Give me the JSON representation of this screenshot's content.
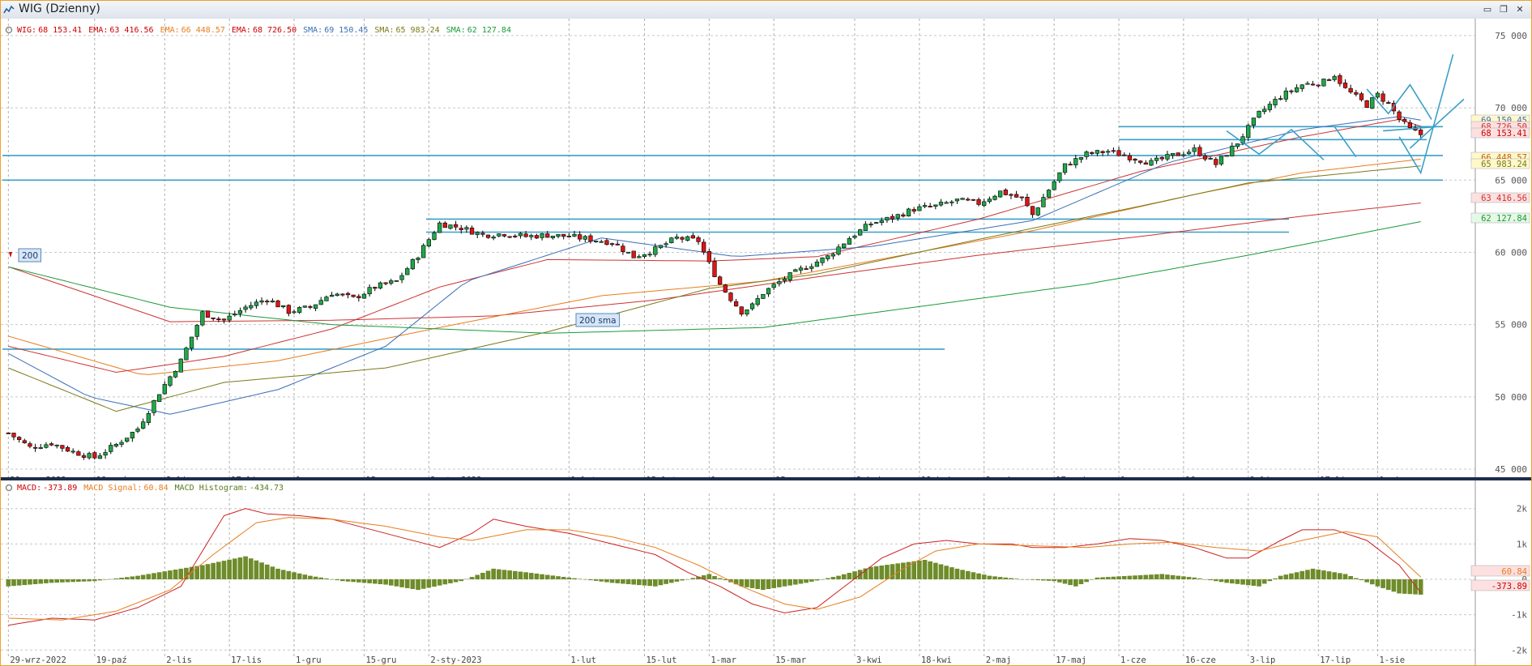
{
  "window": {
    "title": "WIG (Dzienny)",
    "buttons": [
      {
        "name": "minimize",
        "glyph": "▭"
      },
      {
        "name": "restore",
        "glyph": "❐"
      },
      {
        "name": "close",
        "glyph": "✕"
      }
    ]
  },
  "chart_data": [
    {
      "type": "candlestick",
      "panel": "price",
      "legend": [
        {
          "label": "WIG:",
          "value": "68 153.41",
          "color": "#cc0000"
        },
        {
          "label": "EMA:",
          "value": "63 416.56",
          "color": "#cc0000"
        },
        {
          "label": "EMA:",
          "value": "66 448.57",
          "color": "#e87d1e"
        },
        {
          "label": "EMA:",
          "value": "68 726.50",
          "color": "#cc0000"
        },
        {
          "label": "SMA:",
          "value": "69 150.45",
          "color": "#3a6fb7"
        },
        {
          "label": "SMA:",
          "value": "65 983.24",
          "color": "#7a7a1a"
        },
        {
          "label": "SMA:",
          "value": "62 127.84",
          "color": "#1a9a3a"
        }
      ],
      "x_labels": [
        "29-wrz-2022",
        "19-paź",
        "2-lis",
        "17-lis",
        "1-gru",
        "15-gru",
        "2-sty-2023",
        "1-lut",
        "15-lut",
        "1-mar",
        "15-mar",
        "3-kwi",
        "18-kwi",
        "2-maj",
        "17-maj",
        "1-cze",
        "16-cze",
        "3-lip",
        "17-lip",
        "1-sie"
      ],
      "y_ticks": [
        45000,
        50000,
        55000,
        60000,
        65000,
        70000,
        75000
      ],
      "y_tick_labels": [
        "45 000",
        "50 000",
        "55 000",
        "60 000",
        "65 000",
        "70 000",
        "75 000"
      ],
      "ylim": [
        45000,
        75500
      ],
      "price_path": [
        [
          0,
          47500
        ],
        [
          4,
          46500
        ],
        [
          8,
          46800
        ],
        [
          12,
          46200
        ],
        [
          16,
          45800
        ],
        [
          20,
          46700
        ],
        [
          24,
          47800
        ],
        [
          28,
          50300
        ],
        [
          32,
          52500
        ],
        [
          36,
          55800
        ],
        [
          40,
          55300
        ],
        [
          44,
          56200
        ],
        [
          48,
          56800
        ],
        [
          52,
          55900
        ],
        [
          56,
          56200
        ],
        [
          60,
          57200
        ],
        [
          64,
          56800
        ],
        [
          68,
          57600
        ],
        [
          72,
          58000
        ],
        [
          76,
          59800
        ],
        [
          80,
          62000
        ],
        [
          84,
          61700
        ],
        [
          88,
          61200
        ],
        [
          92,
          61300
        ],
        [
          96,
          61100
        ],
        [
          100,
          61200
        ],
        [
          104,
          61100
        ],
        [
          108,
          60900
        ],
        [
          112,
          60700
        ],
        [
          116,
          59700
        ],
        [
          120,
          60200
        ],
        [
          124,
          61000
        ],
        [
          128,
          60800
        ],
        [
          130,
          59200
        ],
        [
          132,
          57800
        ],
        [
          134,
          56800
        ],
        [
          136,
          55900
        ],
        [
          138,
          56300
        ],
        [
          140,
          57200
        ],
        [
          144,
          58200
        ],
        [
          148,
          59000
        ],
        [
          152,
          59700
        ],
        [
          156,
          61000
        ],
        [
          160,
          62000
        ],
        [
          164,
          62400
        ],
        [
          168,
          63000
        ],
        [
          172,
          63200
        ],
        [
          176,
          63600
        ],
        [
          180,
          63400
        ],
        [
          184,
          64200
        ],
        [
          188,
          63700
        ],
        [
          190,
          62600
        ],
        [
          192,
          63800
        ],
        [
          196,
          66000
        ],
        [
          200,
          66800
        ],
        [
          204,
          67000
        ],
        [
          208,
          66600
        ],
        [
          212,
          66200
        ],
        [
          216,
          66700
        ],
        [
          220,
          67100
        ],
        [
          224,
          66100
        ],
        [
          228,
          67600
        ],
        [
          232,
          69600
        ],
        [
          236,
          70800
        ],
        [
          240,
          71600
        ],
        [
          244,
          71800
        ],
        [
          246,
          72300
        ],
        [
          248,
          71300
        ],
        [
          252,
          70200
        ],
        [
          254,
          70900
        ],
        [
          256,
          70300
        ],
        [
          258,
          69200
        ],
        [
          260,
          68500
        ],
        [
          262,
          68153
        ]
      ],
      "indicators": [
        {
          "name": "EMA",
          "value": 63416.56,
          "color": "#cc3333",
          "path": [
            [
              0,
              59000
            ],
            [
              30,
              55200
            ],
            [
              60,
              55300
            ],
            [
              90,
              55600
            ],
            [
              120,
              56700
            ],
            [
              150,
              58300
            ],
            [
              180,
              59800
            ],
            [
              210,
              61100
            ],
            [
              240,
              62500
            ],
            [
              262,
              63417
            ]
          ]
        },
        {
          "name": "EMA",
          "value": 66448.57,
          "color": "#e87d1e",
          "path": [
            [
              0,
              54200
            ],
            [
              25,
              51500
            ],
            [
              50,
              52500
            ],
            [
              80,
              54800
            ],
            [
              110,
              57000
            ],
            [
              140,
              58000
            ],
            [
              160,
              59400
            ],
            [
              190,
              61500
            ],
            [
              220,
              64000
            ],
            [
              240,
              65500
            ],
            [
              262,
              66449
            ]
          ]
        },
        {
          "name": "EMA",
          "value": 68726.5,
          "color": "#cc3333",
          "path": [
            [
              0,
              53500
            ],
            [
              20,
              51700
            ],
            [
              40,
              52800
            ],
            [
              60,
              54700
            ],
            [
              80,
              57600
            ],
            [
              100,
              59500
            ],
            [
              130,
              59400
            ],
            [
              150,
              59700
            ],
            [
              180,
              62300
            ],
            [
              210,
              65600
            ],
            [
              240,
              68000
            ],
            [
              258,
              69200
            ],
            [
              262,
              68727
            ]
          ]
        },
        {
          "name": "SMA",
          "value": 69150.45,
          "color": "#3a6fb7",
          "path": [
            [
              0,
              53000
            ],
            [
              15,
              50000
            ],
            [
              30,
              48800
            ],
            [
              50,
              50500
            ],
            [
              70,
              53500
            ],
            [
              85,
              58000
            ],
            [
              110,
              61000
            ],
            [
              135,
              59700
            ],
            [
              160,
              60400
            ],
            [
              190,
              62200
            ],
            [
              215,
              66200
            ],
            [
              240,
              68500
            ],
            [
              258,
              69400
            ],
            [
              262,
              69150
            ]
          ]
        },
        {
          "name": "SMA",
          "value": 65983.24,
          "color": "#7a7a1a",
          "path": [
            [
              0,
              52000
            ],
            [
              20,
              49000
            ],
            [
              40,
              51000
            ],
            [
              70,
              52000
            ],
            [
              100,
              54500
            ],
            [
              130,
              57500
            ],
            [
              150,
              58500
            ],
            [
              180,
              60900
            ],
            [
              210,
              63200
            ],
            [
              230,
              64800
            ],
            [
              262,
              65983
            ]
          ]
        },
        {
          "name": "SMA",
          "value": 62127.84,
          "color": "#1a9a3a",
          "path": [
            [
              0,
              59000
            ],
            [
              30,
              56200
            ],
            [
              60,
              55000
            ],
            [
              100,
              54400
            ],
            [
              140,
              54800
            ],
            [
              170,
              56300
            ],
            [
              200,
              57800
            ],
            [
              230,
              59800
            ],
            [
              262,
              62128
            ]
          ]
        }
      ],
      "right_labels": [
        {
          "value": "69 150.45",
          "color": "#3a6fb7",
          "bg": "#fff8cc"
        },
        {
          "value": "68 726.50",
          "color": "#cc3333",
          "bg": "#fde0e0"
        },
        {
          "value": "68 153.41",
          "color": "#cc0000",
          "bg": "#fde0e0"
        },
        {
          "value": "66 448.57",
          "color": "#c06010",
          "bg": "#fff8cc"
        },
        {
          "value": "65 983.24",
          "color": "#7a7a1a",
          "bg": "#fff8cc"
        },
        {
          "value": "63 416.56",
          "color": "#cc3333",
          "bg": "#fde0e0"
        },
        {
          "value": "62 127.84",
          "color": "#1a9a3a",
          "bg": "#e6f8e6"
        }
      ],
      "annotations": [
        {
          "text": "200",
          "color": "#1a5a9a"
        },
        {
          "text": "200 sma",
          "color": "#1a5a9a"
        }
      ]
    },
    {
      "type": "macd",
      "panel": "macd",
      "legend": [
        {
          "label": "MACD:",
          "value": "-373.89",
          "color": "#cc0000"
        },
        {
          "label": "MACD Signal:",
          "value": "60.84",
          "color": "#e87d1e"
        },
        {
          "label": "MACD Histogram:",
          "value": "-434.73",
          "color": "#5a7a20"
        }
      ],
      "y_ticks": [
        -2000,
        -1000,
        0,
        1000,
        2000
      ],
      "y_tick_labels": [
        "-2k",
        "-1k",
        "0",
        "1k",
        "2k"
      ],
      "ylim": [
        -2200,
        2200
      ],
      "macd_path": [
        [
          0,
          -1300
        ],
        [
          8,
          -1100
        ],
        [
          16,
          -1150
        ],
        [
          24,
          -800
        ],
        [
          32,
          -200
        ],
        [
          36,
          800
        ],
        [
          40,
          1800
        ],
        [
          44,
          2000
        ],
        [
          48,
          1850
        ],
        [
          54,
          1800
        ],
        [
          60,
          1700
        ],
        [
          70,
          1300
        ],
        [
          80,
          900
        ],
        [
          86,
          1300
        ],
        [
          90,
          1700
        ],
        [
          96,
          1500
        ],
        [
          104,
          1300
        ],
        [
          112,
          1000
        ],
        [
          120,
          700
        ],
        [
          126,
          200
        ],
        [
          132,
          -200
        ],
        [
          138,
          -700
        ],
        [
          144,
          -950
        ],
        [
          150,
          -800
        ],
        [
          156,
          -100
        ],
        [
          162,
          600
        ],
        [
          168,
          1000
        ],
        [
          174,
          1100
        ],
        [
          180,
          1000
        ],
        [
          186,
          1000
        ],
        [
          190,
          900
        ],
        [
          196,
          900
        ],
        [
          202,
          1000
        ],
        [
          208,
          1150
        ],
        [
          214,
          1100
        ],
        [
          220,
          900
        ],
        [
          226,
          600
        ],
        [
          230,
          600
        ],
        [
          236,
          1100
        ],
        [
          240,
          1400
        ],
        [
          246,
          1400
        ],
        [
          252,
          1100
        ],
        [
          258,
          400
        ],
        [
          262,
          -374
        ]
      ],
      "signal_path": [
        [
          0,
          -1100
        ],
        [
          10,
          -1150
        ],
        [
          20,
          -900
        ],
        [
          30,
          -300
        ],
        [
          38,
          700
        ],
        [
          46,
          1600
        ],
        [
          52,
          1750
        ],
        [
          60,
          1700
        ],
        [
          70,
          1500
        ],
        [
          80,
          1200
        ],
        [
          86,
          1100
        ],
        [
          96,
          1400
        ],
        [
          104,
          1400
        ],
        [
          112,
          1200
        ],
        [
          120,
          900
        ],
        [
          128,
          400
        ],
        [
          136,
          -200
        ],
        [
          144,
          -700
        ],
        [
          150,
          -850
        ],
        [
          158,
          -500
        ],
        [
          166,
          300
        ],
        [
          172,
          800
        ],
        [
          180,
          1000
        ],
        [
          190,
          950
        ],
        [
          200,
          900
        ],
        [
          208,
          1000
        ],
        [
          216,
          1050
        ],
        [
          224,
          900
        ],
        [
          232,
          800
        ],
        [
          240,
          1100
        ],
        [
          248,
          1350
        ],
        [
          254,
          1200
        ],
        [
          262,
          61
        ]
      ],
      "histogram_path": [
        [
          0,
          -200
        ],
        [
          8,
          -100
        ],
        [
          16,
          -50
        ],
        [
          24,
          100
        ],
        [
          30,
          250
        ],
        [
          36,
          400
        ],
        [
          44,
          650
        ],
        [
          50,
          300
        ],
        [
          56,
          100
        ],
        [
          62,
          -50
        ],
        [
          70,
          -150
        ],
        [
          76,
          -300
        ],
        [
          84,
          -50
        ],
        [
          90,
          300
        ],
        [
          96,
          200
        ],
        [
          104,
          50
        ],
        [
          112,
          -100
        ],
        [
          120,
          -200
        ],
        [
          126,
          0
        ],
        [
          130,
          150
        ],
        [
          136,
          -200
        ],
        [
          140,
          -300
        ],
        [
          148,
          -100
        ],
        [
          154,
          100
        ],
        [
          160,
          350
        ],
        [
          170,
          550
        ],
        [
          176,
          300
        ],
        [
          182,
          100
        ],
        [
          188,
          0
        ],
        [
          194,
          -50
        ],
        [
          198,
          -200
        ],
        [
          202,
          50
        ],
        [
          208,
          100
        ],
        [
          214,
          150
        ],
        [
          220,
          50
        ],
        [
          226,
          -100
        ],
        [
          232,
          -200
        ],
        [
          236,
          100
        ],
        [
          242,
          300
        ],
        [
          248,
          150
        ],
        [
          254,
          -200
        ],
        [
          258,
          -400
        ],
        [
          262,
          -435
        ]
      ]
    }
  ]
}
